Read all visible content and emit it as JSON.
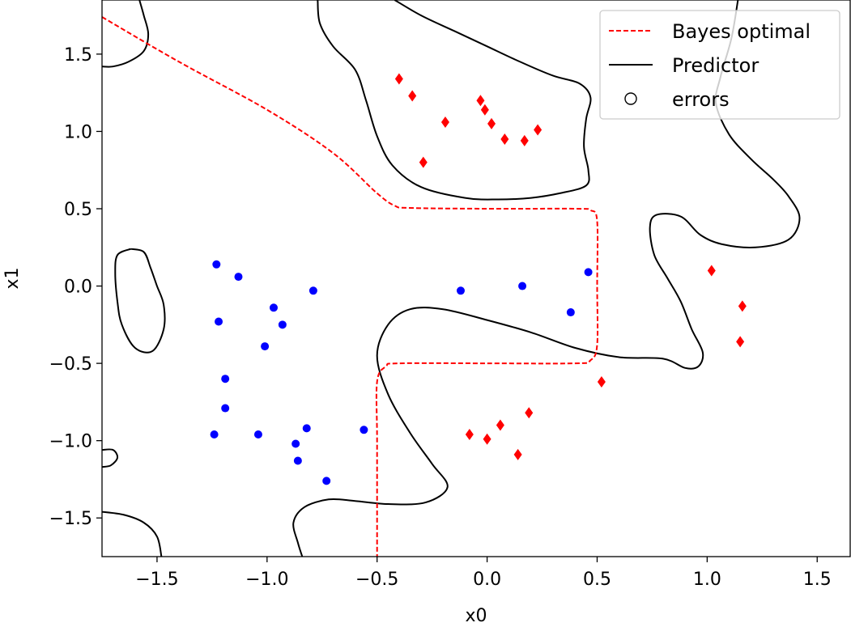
{
  "chart_data": {
    "type": "scatter",
    "xlabel": "x0",
    "ylabel": "x1",
    "xlim": [
      -1.75,
      1.65
    ],
    "ylim": [
      -1.75,
      1.85
    ],
    "xticks": [
      -1.5,
      -1.0,
      -0.5,
      0.0,
      0.5,
      1.0,
      1.5
    ],
    "yticks": [
      -1.5,
      -1.0,
      -0.5,
      0.0,
      0.5,
      1.0,
      1.5
    ],
    "xtick_labels": [
      "−1.5",
      "−1.0",
      "−0.5",
      "0.0",
      "0.5",
      "1.0",
      "1.5"
    ],
    "ytick_labels": [
      "−1.5",
      "−1.0",
      "−0.5",
      "0.0",
      "0.5",
      "1.0",
      "1.5"
    ],
    "grid": false,
    "legend_position": "top-right",
    "legend": [
      {
        "label": "Bayes optimal",
        "style": "dashed-line",
        "color": "#ff0000"
      },
      {
        "label": "Predictor",
        "style": "solid-line",
        "color": "#000000"
      },
      {
        "label": "errors",
        "style": "open-circle",
        "color": "#000000"
      }
    ],
    "colors": {
      "class_pos": "#ff0000",
      "class_neg": "#0000ff",
      "predictor": "#000000",
      "bayes": "#ff0000"
    },
    "bayes_optimal": [
      [
        -1.75,
        1.74
      ],
      [
        -1.4,
        1.45
      ],
      [
        -1.0,
        1.14
      ],
      [
        -0.7,
        0.86
      ],
      [
        -0.5,
        0.6
      ],
      [
        -0.42,
        0.52
      ],
      [
        -0.35,
        0.505
      ],
      [
        0.0,
        0.5
      ],
      [
        0.4,
        0.5
      ],
      [
        0.47,
        0.49
      ],
      [
        0.5,
        0.42
      ],
      [
        0.5,
        0.0
      ],
      [
        0.5,
        -0.38
      ],
      [
        0.47,
        -0.48
      ],
      [
        0.4,
        -0.5
      ],
      [
        0.0,
        -0.5
      ],
      [
        -0.4,
        -0.5
      ],
      [
        -0.46,
        -0.52
      ],
      [
        -0.5,
        -0.62
      ],
      [
        -0.5,
        -1.0
      ],
      [
        -0.5,
        -1.75
      ]
    ],
    "predictor_contours": [
      [
        [
          -1.58,
          1.85
        ],
        [
          -1.56,
          1.75
        ],
        [
          -1.54,
          1.63
        ],
        [
          -1.56,
          1.52
        ],
        [
          -1.63,
          1.45
        ],
        [
          -1.7,
          1.42
        ],
        [
          -1.75,
          1.42
        ]
      ],
      [
        [
          -0.77,
          1.85
        ],
        [
          -0.76,
          1.7
        ],
        [
          -0.7,
          1.55
        ],
        [
          -0.6,
          1.4
        ],
        [
          -0.55,
          1.2
        ],
        [
          -0.5,
          0.97
        ],
        [
          -0.43,
          0.78
        ],
        [
          -0.3,
          0.64
        ],
        [
          -0.1,
          0.57
        ],
        [
          0.05,
          0.56
        ],
        [
          0.2,
          0.57
        ],
        [
          0.33,
          0.6
        ],
        [
          0.45,
          0.65
        ],
        [
          0.46,
          0.75
        ],
        [
          0.44,
          0.9
        ],
        [
          0.45,
          1.08
        ],
        [
          0.47,
          1.22
        ],
        [
          0.42,
          1.31
        ],
        [
          0.3,
          1.36
        ],
        [
          0.15,
          1.45
        ],
        [
          0.0,
          1.55
        ],
        [
          -0.15,
          1.65
        ],
        [
          -0.3,
          1.75
        ],
        [
          -0.42,
          1.85
        ]
      ],
      [
        [
          1.14,
          1.85
        ],
        [
          1.11,
          1.6
        ],
        [
          1.06,
          1.35
        ],
        [
          1.04,
          1.18
        ],
        [
          1.1,
          0.98
        ],
        [
          1.2,
          0.82
        ],
        [
          1.3,
          0.69
        ],
        [
          1.37,
          0.58
        ],
        [
          1.42,
          0.44
        ],
        [
          1.37,
          0.3
        ],
        [
          1.22,
          0.25
        ],
        [
          1.07,
          0.27
        ],
        [
          0.97,
          0.33
        ],
        [
          0.88,
          0.45
        ],
        [
          0.77,
          0.46
        ],
        [
          0.74,
          0.38
        ],
        [
          0.76,
          0.2
        ],
        [
          0.82,
          0.05
        ],
        [
          0.88,
          -0.1
        ],
        [
          0.93,
          -0.28
        ],
        [
          0.98,
          -0.43
        ],
        [
          0.96,
          -0.52
        ],
        [
          0.9,
          -0.53
        ],
        [
          0.8,
          -0.47
        ],
        [
          0.6,
          -0.46
        ],
        [
          0.4,
          -0.4
        ],
        [
          0.2,
          -0.3
        ],
        [
          0.0,
          -0.22
        ],
        [
          -0.2,
          -0.15
        ],
        [
          -0.35,
          -0.15
        ],
        [
          -0.45,
          -0.25
        ],
        [
          -0.5,
          -0.45
        ],
        [
          -0.45,
          -0.7
        ],
        [
          -0.35,
          -0.95
        ],
        [
          -0.25,
          -1.15
        ],
        [
          -0.18,
          -1.3
        ],
        [
          -0.28,
          -1.4
        ],
        [
          -0.45,
          -1.41
        ],
        [
          -0.6,
          -1.39
        ],
        [
          -0.72,
          -1.38
        ],
        [
          -0.83,
          -1.43
        ],
        [
          -0.88,
          -1.53
        ],
        [
          -0.86,
          -1.66
        ],
        [
          -0.84,
          -1.75
        ]
      ],
      [
        [
          -1.62,
          0.24
        ],
        [
          -1.56,
          0.22
        ],
        [
          -1.53,
          0.12
        ],
        [
          -1.5,
          0.0
        ],
        [
          -1.47,
          -0.12
        ],
        [
          -1.47,
          -0.28
        ],
        [
          -1.52,
          -0.42
        ],
        [
          -1.6,
          -0.4
        ],
        [
          -1.66,
          -0.25
        ],
        [
          -1.68,
          -0.1
        ],
        [
          -1.69,
          0.08
        ],
        [
          -1.68,
          0.2
        ],
        [
          -1.62,
          0.24
        ]
      ],
      [
        [
          -1.75,
          -1.06
        ],
        [
          -1.7,
          -1.06
        ],
        [
          -1.68,
          -1.11
        ],
        [
          -1.71,
          -1.16
        ],
        [
          -1.75,
          -1.17
        ]
      ],
      [
        [
          -1.75,
          -1.46
        ],
        [
          -1.65,
          -1.48
        ],
        [
          -1.56,
          -1.53
        ],
        [
          -1.5,
          -1.62
        ],
        [
          -1.48,
          -1.75
        ]
      ]
    ],
    "series": [
      {
        "marker": "diamond",
        "color": "#ff0000",
        "points": [
          [
            -0.4,
            1.34
          ],
          [
            -0.34,
            1.23
          ],
          [
            -0.03,
            1.2
          ],
          [
            -0.01,
            1.14
          ],
          [
            0.02,
            1.05
          ],
          [
            -0.19,
            1.06
          ],
          [
            0.08,
            0.95
          ],
          [
            0.23,
            1.01
          ],
          [
            0.17,
            0.94
          ],
          [
            -0.29,
            0.8
          ],
          [
            1.02,
            0.1
          ],
          [
            1.16,
            -0.13
          ],
          [
            1.15,
            -0.36
          ],
          [
            0.52,
            -0.62
          ],
          [
            0.19,
            -0.82
          ],
          [
            0.06,
            -0.9
          ],
          [
            -0.08,
            -0.96
          ],
          [
            0.0,
            -0.99
          ],
          [
            0.14,
            -1.09
          ]
        ]
      },
      {
        "marker": "dot",
        "color": "#0000ff",
        "points": [
          [
            -1.23,
            0.14
          ],
          [
            -1.13,
            0.06
          ],
          [
            -0.79,
            -0.03
          ],
          [
            -0.97,
            -0.14
          ],
          [
            -0.93,
            -0.25
          ],
          [
            -1.22,
            -0.23
          ],
          [
            -1.01,
            -0.39
          ],
          [
            -1.19,
            -0.6
          ],
          [
            -1.19,
            -0.79
          ],
          [
            -1.24,
            -0.96
          ],
          [
            -1.04,
            -0.96
          ],
          [
            -0.82,
            -0.92
          ],
          [
            -0.87,
            -1.02
          ],
          [
            -0.86,
            -1.13
          ],
          [
            -0.73,
            -1.26
          ],
          [
            -0.56,
            -0.93
          ],
          [
            -0.12,
            -0.03
          ],
          [
            0.16,
            0.0
          ],
          [
            0.46,
            0.09
          ],
          [
            0.38,
            -0.17
          ]
        ]
      }
    ]
  }
}
